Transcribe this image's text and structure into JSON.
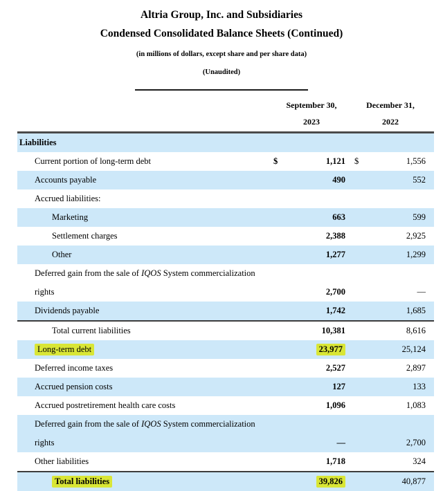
{
  "header": {
    "title1": "Altria Group, Inc. and Subsidiaries",
    "title2": "Condensed Consolidated Balance Sheets (Continued)",
    "subtitle1": "(in millions of dollars, except share and per share data)",
    "subtitle2": "(Unaudited)"
  },
  "columns": {
    "col1_line1": "September 30,",
    "col1_line2": "2023",
    "col2_line1": "December 31,",
    "col2_line2": "2022"
  },
  "colors": {
    "row_shade": "#cde8f9",
    "highlight": "#d9e636",
    "border_dark": "#4a4a4a",
    "text": "#000000"
  },
  "table": {
    "currency_symbol": "$",
    "rows": [
      {
        "label": "Liabilities",
        "indent": 0,
        "bold": true,
        "shade": true
      },
      {
        "label": "Current portion of long-term debt",
        "indent": 1,
        "dollar": true,
        "v1": "1,121",
        "v2": "1,556",
        "shade": false
      },
      {
        "label": "Accounts payable",
        "indent": 1,
        "v1": "490",
        "v2": "552",
        "shade": true
      },
      {
        "label": "Accrued liabilities:",
        "indent": 1,
        "shade": false
      },
      {
        "label": "Marketing",
        "indent": 2,
        "v1": "663",
        "v2": "599",
        "shade": true
      },
      {
        "label": "Settlement charges",
        "indent": 2,
        "v1": "2,388",
        "v2": "2,925",
        "shade": false
      },
      {
        "label": "Other",
        "indent": 2,
        "v1": "1,277",
        "v2": "1,299",
        "shade": true
      },
      {
        "parts": [
          {
            "text": "Deferred gain from the sale of ",
            "italic": false
          },
          {
            "text": "IQOS",
            "italic": true
          },
          {
            "text": " System commercialization",
            "italic": false
          }
        ],
        "line2": "rights",
        "indent": 1,
        "v1": "2,700",
        "v2": "—",
        "shade": false,
        "two_line": true
      },
      {
        "label": "Dividends payable",
        "indent": 1,
        "v1": "1,742",
        "v2": "1,685",
        "shade": true
      },
      {
        "label": "Total current liabilities",
        "indent": 2,
        "v1": "10,381",
        "v2": "8,616",
        "shade": false,
        "border_top": true
      },
      {
        "label": "Long-term debt",
        "indent": 1,
        "v1": "23,977",
        "v2": "25,124",
        "shade": true,
        "hl_label": true,
        "hl_v1": true
      },
      {
        "label": "Deferred income taxes",
        "indent": 1,
        "v1": "2,527",
        "v2": "2,897",
        "shade": false
      },
      {
        "label": "Accrued pension costs",
        "indent": 1,
        "v1": "127",
        "v2": "133",
        "shade": true
      },
      {
        "label": "Accrued postretirement health care costs",
        "indent": 1,
        "v1": "1,096",
        "v2": "1,083",
        "shade": false
      },
      {
        "parts": [
          {
            "text": "Deferred gain from the sale of ",
            "italic": false
          },
          {
            "text": "IQOS",
            "italic": true
          },
          {
            "text": " System commercialization",
            "italic": false
          }
        ],
        "line2": "rights",
        "indent": 1,
        "v1": "—",
        "v2": "2,700",
        "shade": true,
        "two_line": true
      },
      {
        "label": "Other liabilities",
        "indent": 1,
        "v1": "1,718",
        "v2": "324",
        "shade": false
      },
      {
        "label": "Total liabilities",
        "indent": 2,
        "bold": true,
        "v1": "39,826",
        "v2": "40,877",
        "shade": true,
        "hl_label": true,
        "hl_v1": true,
        "border_top": true
      }
    ]
  }
}
